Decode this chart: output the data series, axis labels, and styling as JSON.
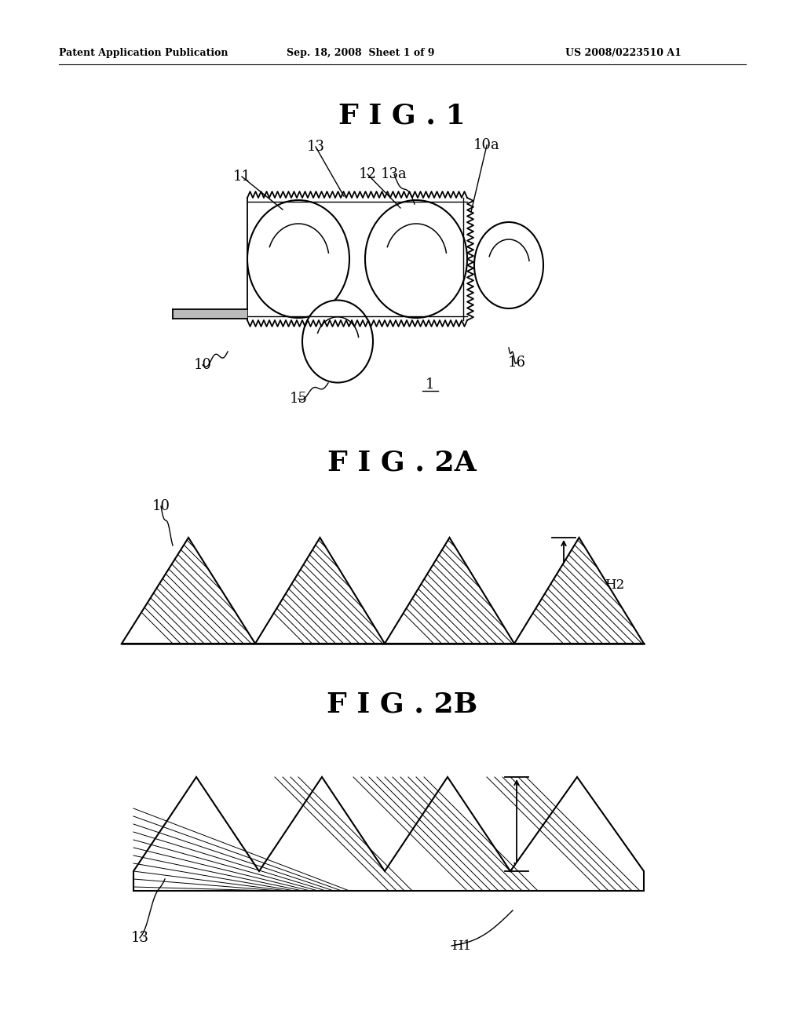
{
  "bg_color": "#ffffff",
  "header_left": "Patent Application Publication",
  "header_mid": "Sep. 18, 2008  Sheet 1 of 9",
  "header_right": "US 2008/0223510 A1",
  "fig1_title": "F I G . 1",
  "fig2a_title": "F I G . 2A",
  "fig2b_title": "F I G . 2B",
  "label_fontsize": 13,
  "header_fontsize": 9,
  "title_fontsize": 26
}
